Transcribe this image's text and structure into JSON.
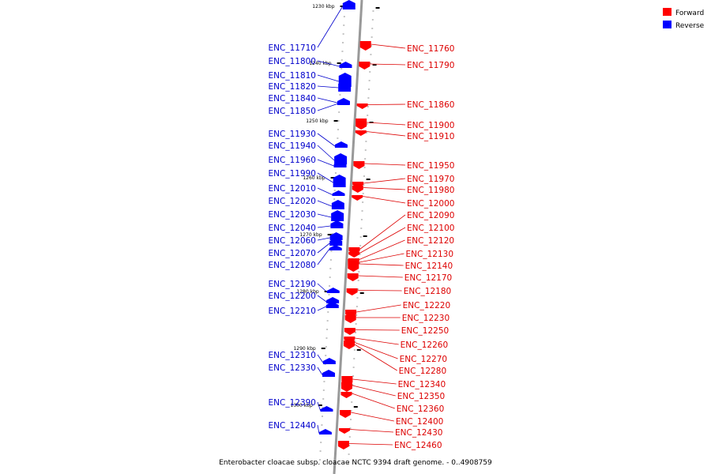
{
  "caption": "Enterobacter cloacae subsp. cloacae NCTC 9394 draft genome. - 0..4908759",
  "legend": [
    {
      "label": "Forward",
      "color": "#ff0000"
    },
    {
      "label": "Reverse",
      "color": "#0000ff"
    }
  ],
  "ticks": [
    "1230 kbp",
    "1240 kbp",
    "1250 kbp",
    "1260 kbp",
    "1270 kbp",
    "1280 kbp",
    "1290 kbp",
    "1300 kbp"
  ],
  "reverse_genes": [
    "ENC_11710",
    "ENC_11800",
    "ENC_11810",
    "ENC_11820",
    "ENC_11840",
    "ENC_11850",
    "ENC_11930",
    "ENC_11940",
    "ENC_11960",
    "ENC_11990",
    "ENC_12010",
    "ENC_12020",
    "ENC_12030",
    "ENC_12040",
    "ENC_12060",
    "ENC_12070",
    "ENC_12080",
    "ENC_12190",
    "ENC_12200",
    "ENC_12210",
    "ENC_12310",
    "ENC_12330",
    "ENC_12390",
    "ENC_12440"
  ],
  "forward_genes": [
    "ENC_11760",
    "ENC_11790",
    "ENC_11860",
    "ENC_11900",
    "ENC_11910",
    "ENC_11950",
    "ENC_11970",
    "ENC_11980",
    "ENC_12000",
    "ENC_12090",
    "ENC_12100",
    "ENC_12120",
    "ENC_12130",
    "ENC_12140",
    "ENC_12170",
    "ENC_12180",
    "ENC_12220",
    "ENC_12230",
    "ENC_12250",
    "ENC_12260",
    "ENC_12270",
    "ENC_12280",
    "ENC_12340",
    "ENC_12350",
    "ENC_12360",
    "ENC_12400",
    "ENC_12430",
    "ENC_12460"
  ]
}
